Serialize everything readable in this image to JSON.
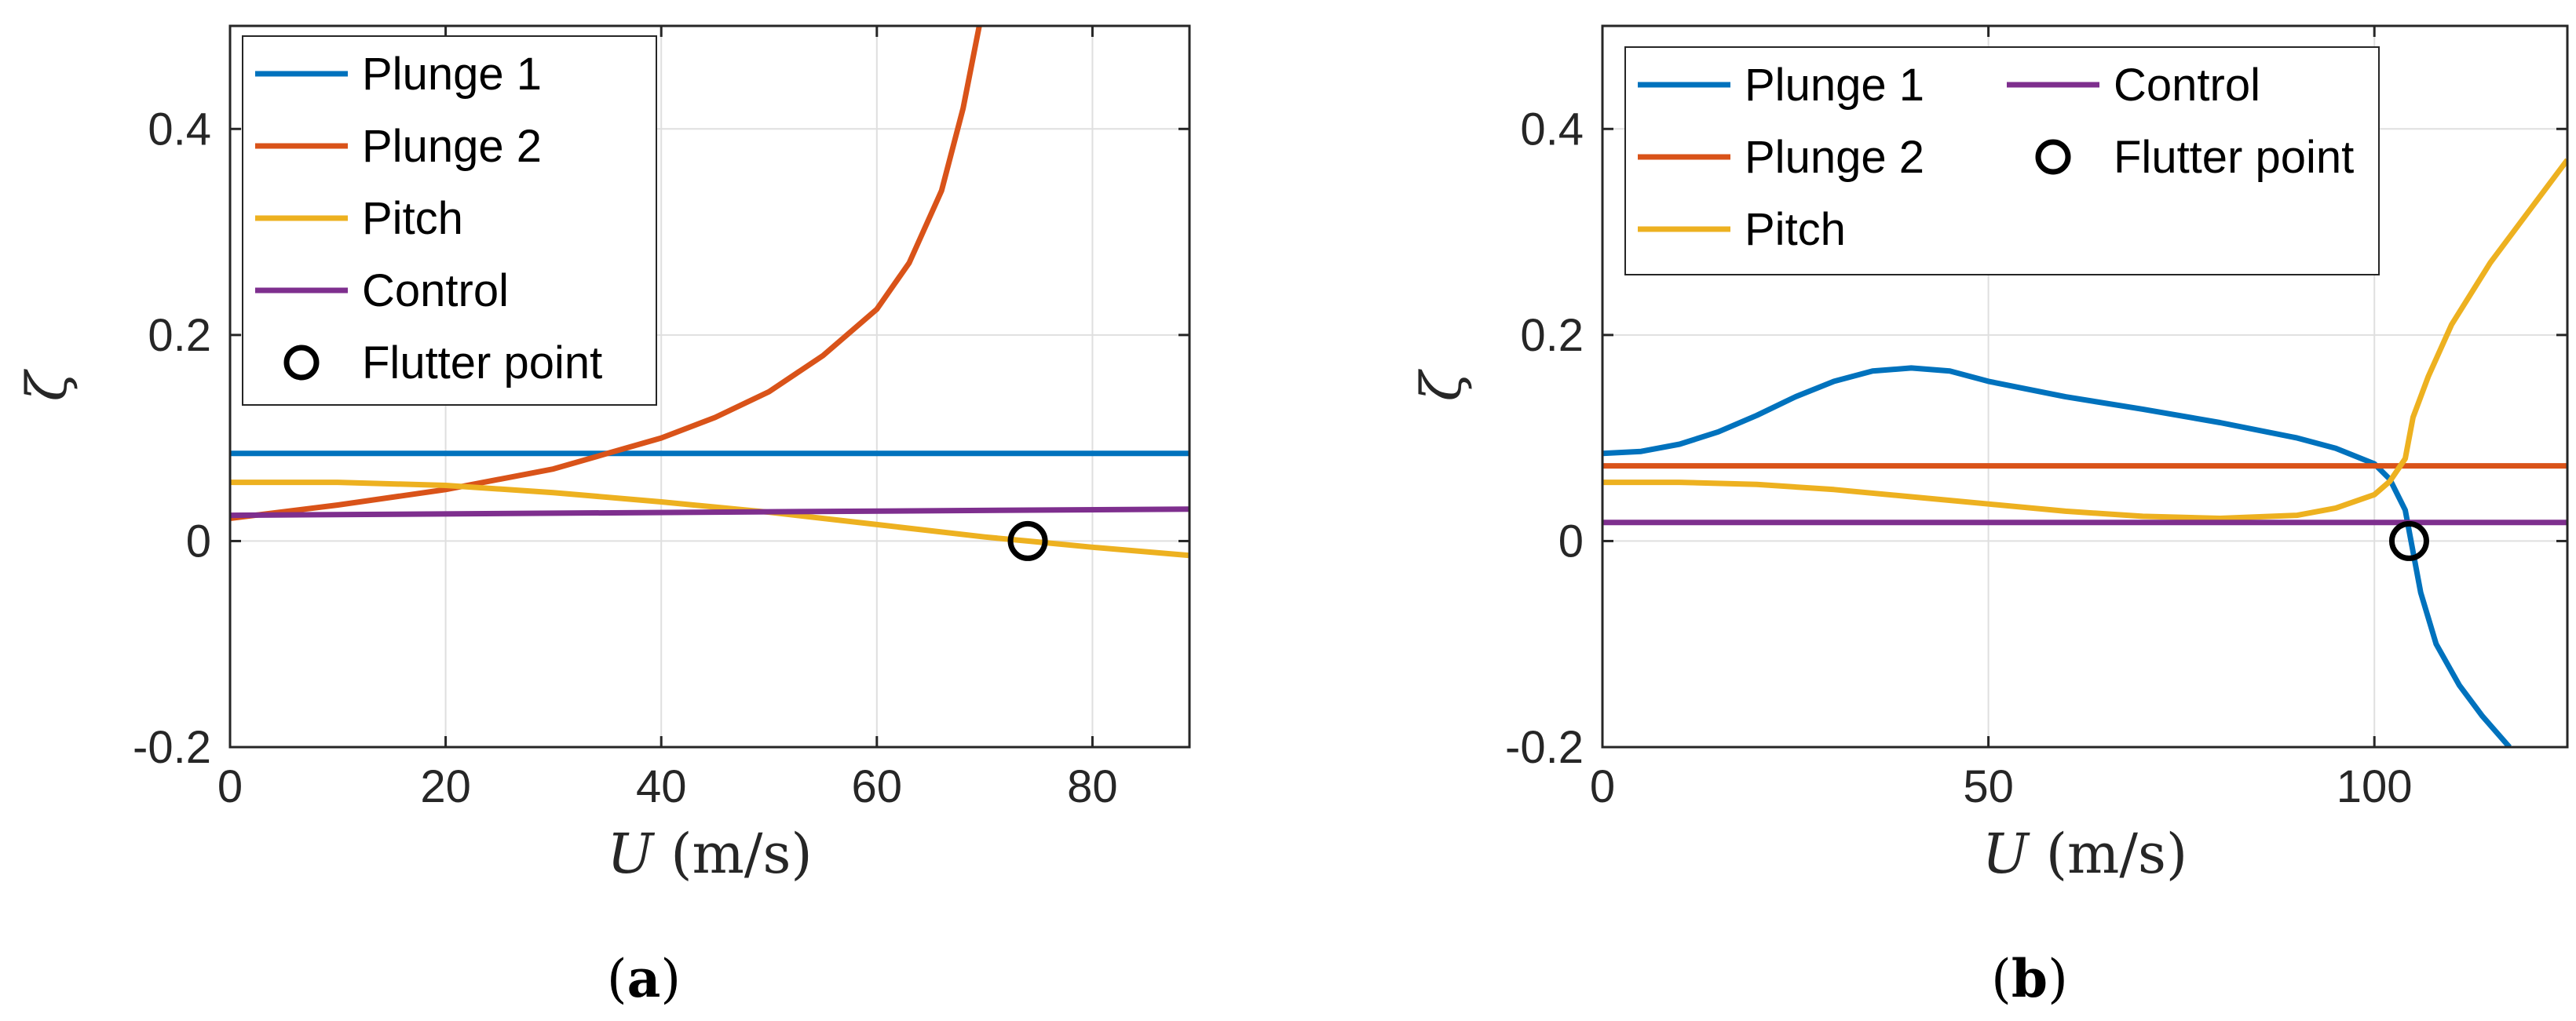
{
  "chart_data": [
    {
      "type": "line",
      "caption": "(a)",
      "xlabel_var": "U",
      "xlabel_unit": "(m/s)",
      "ylabel": "ζ",
      "xlim": [
        0,
        89
      ],
      "ylim": [
        -0.2,
        0.5
      ],
      "xticks": [
        0,
        20,
        40,
        60,
        80
      ],
      "xtick_labels": [
        "0",
        "20",
        "40",
        "60",
        "80"
      ],
      "yticks": [
        -0.2,
        0,
        0.2,
        0.4
      ],
      "ytick_labels": [
        "-0.2",
        "0",
        "0.2",
        "0.4"
      ],
      "grid": true,
      "legend_position": "top-left",
      "legend": [
        "Plunge 1",
        "Plunge 2",
        "Pitch",
        "Control",
        "Flutter point"
      ],
      "series": [
        {
          "name": "Plunge 1",
          "color": "#0072BD",
          "x": [
            0,
            89
          ],
          "y": [
            0.085,
            0.085
          ]
        },
        {
          "name": "Plunge 2",
          "color": "#D95319",
          "x": [
            0,
            10,
            20,
            30,
            35,
            40,
            45,
            50,
            55,
            60,
            63,
            66,
            68,
            69.5
          ],
          "y": [
            0.022,
            0.035,
            0.05,
            0.07,
            0.085,
            0.1,
            0.12,
            0.145,
            0.18,
            0.225,
            0.27,
            0.34,
            0.42,
            0.5
          ]
        },
        {
          "name": "Pitch",
          "color": "#EDB120",
          "x": [
            0,
            10,
            20,
            30,
            40,
            50,
            60,
            70,
            74,
            80,
            89
          ],
          "y": [
            0.057,
            0.057,
            0.054,
            0.047,
            0.038,
            0.028,
            0.016,
            0.004,
            0,
            -0.006,
            -0.014
          ]
        },
        {
          "name": "Control",
          "color": "#7E2F8E",
          "x": [
            0,
            89
          ],
          "y": [
            0.025,
            0.031
          ]
        }
      ],
      "flutter_point": {
        "x": 74,
        "y": 0
      }
    },
    {
      "type": "line",
      "caption": "(b)",
      "xlabel_var": "U",
      "xlabel_unit": "(m/s)",
      "ylabel": "ζ",
      "xlim": [
        0,
        125
      ],
      "ylim": [
        -0.2,
        0.5
      ],
      "xticks": [
        0,
        50,
        100
      ],
      "xtick_labels": [
        "0",
        "50",
        "100"
      ],
      "yticks": [
        -0.2,
        0,
        0.2,
        0.4
      ],
      "ytick_labels": [
        "-0.2",
        "0",
        "0.2",
        "0.4"
      ],
      "grid": true,
      "legend_position": "top-left",
      "legend": [
        "Plunge 1",
        "Plunge 2",
        "Pitch",
        "Control",
        "Flutter point"
      ],
      "series": [
        {
          "name": "Plunge 1",
          "color": "#0072BD",
          "x": [
            0,
            5,
            10,
            15,
            20,
            25,
            30,
            35,
            40,
            45,
            50,
            60,
            70,
            80,
            90,
            95,
            100,
            102,
            104,
            106,
            108,
            111,
            114,
            117.5
          ],
          "y": [
            0.085,
            0.087,
            0.094,
            0.106,
            0.122,
            0.14,
            0.155,
            0.165,
            0.168,
            0.165,
            0.155,
            0.14,
            0.128,
            0.115,
            0.1,
            0.09,
            0.075,
            0.06,
            0.03,
            -0.05,
            -0.1,
            -0.14,
            -0.17,
            -0.2
          ]
        },
        {
          "name": "Plunge 2",
          "color": "#D95319",
          "x": [
            0,
            125
          ],
          "y": [
            0.073,
            0.073
          ]
        },
        {
          "name": "Pitch",
          "color": "#EDB120",
          "x": [
            0,
            10,
            20,
            30,
            40,
            50,
            60,
            70,
            80,
            90,
            95,
            100,
            102,
            104,
            105,
            107,
            110,
            115,
            120,
            125
          ],
          "y": [
            0.057,
            0.057,
            0.055,
            0.05,
            0.043,
            0.036,
            0.029,
            0.024,
            0.022,
            0.025,
            0.032,
            0.045,
            0.058,
            0.08,
            0.12,
            0.16,
            0.21,
            0.27,
            0.32,
            0.37
          ]
        },
        {
          "name": "Control",
          "color": "#7E2F8E",
          "x": [
            0,
            125
          ],
          "y": [
            0.018,
            0.018
          ]
        }
      ],
      "flutter_point": {
        "x": 104.5,
        "y": 0
      }
    }
  ]
}
